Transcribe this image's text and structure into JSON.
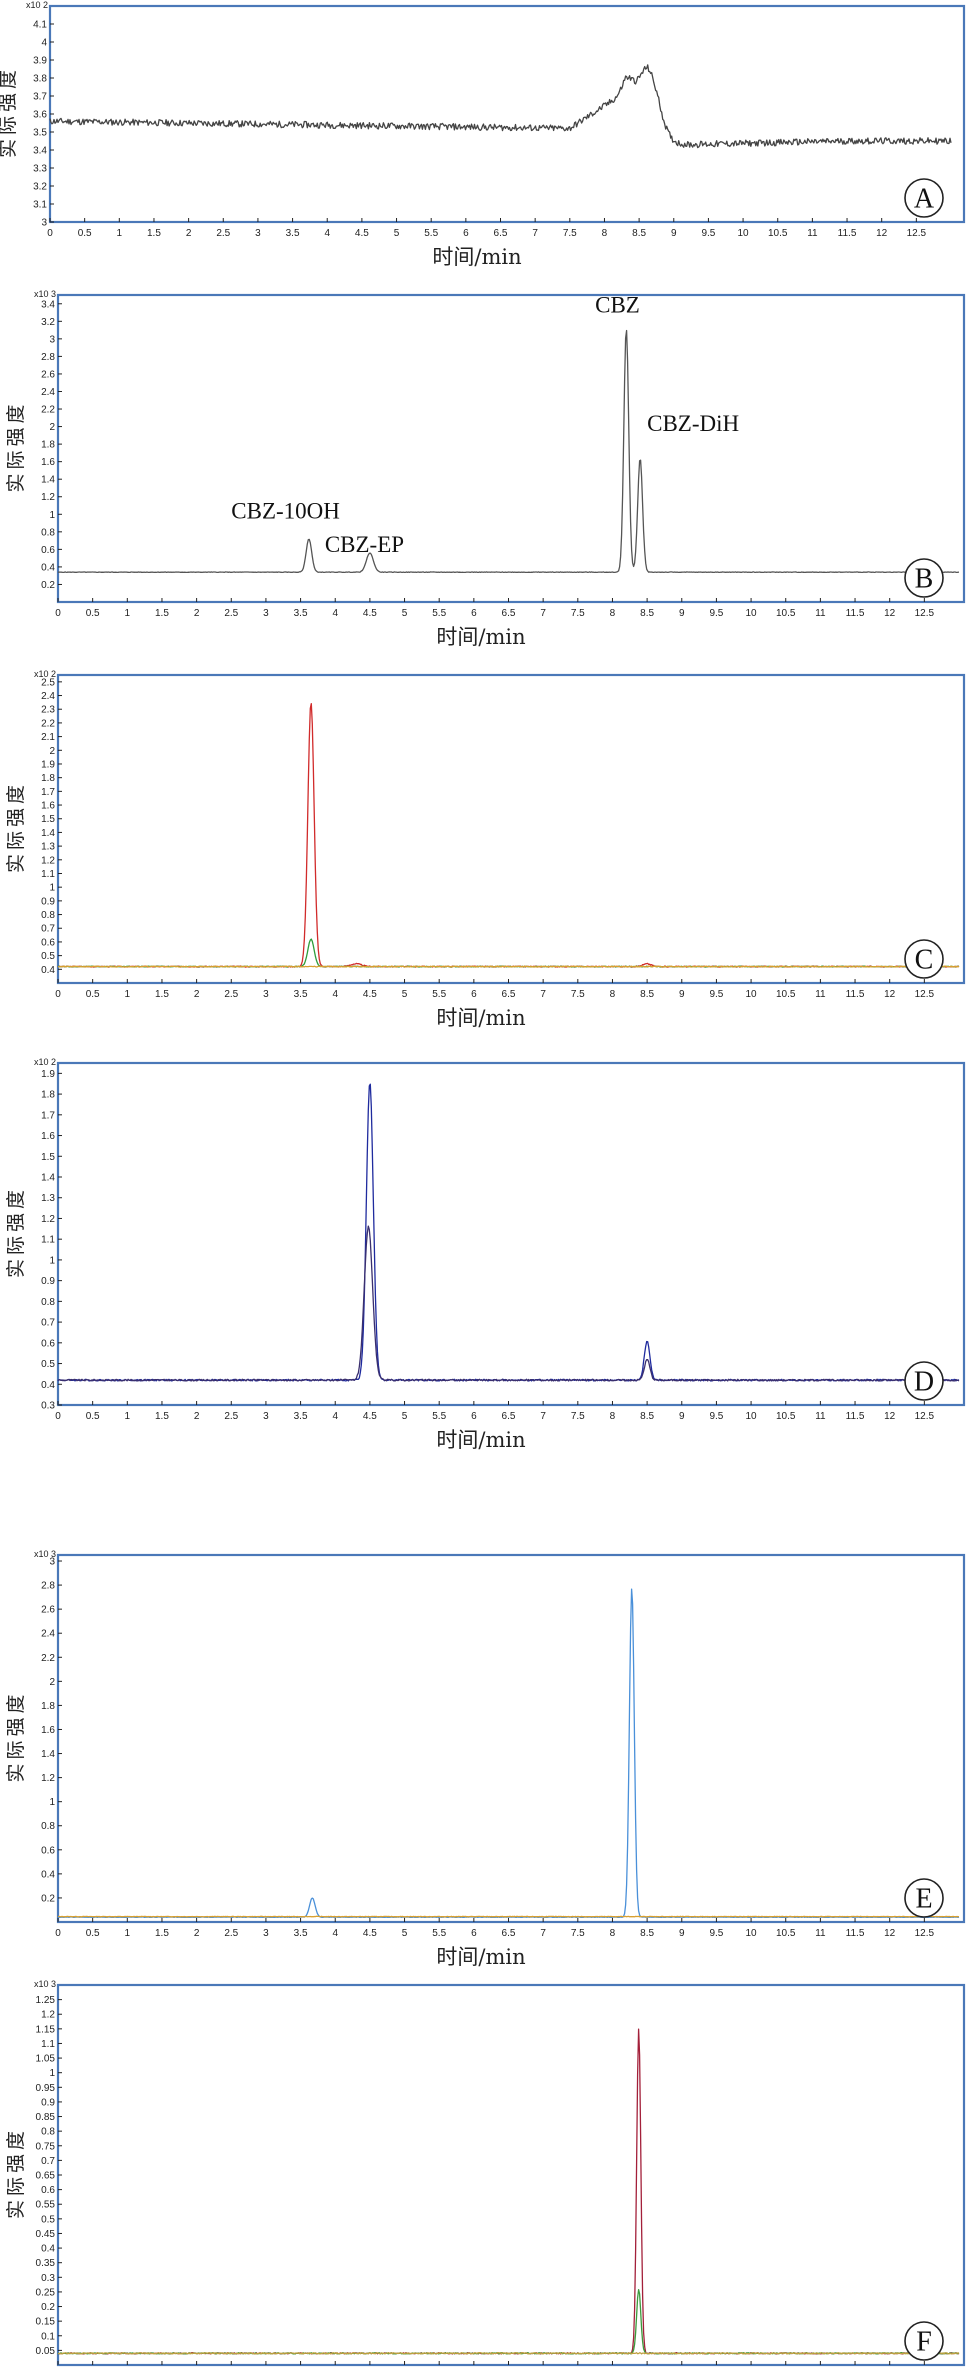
{
  "common": {
    "ylabel": "实际强度",
    "xlabel": "时间/min",
    "xlim": [
      0,
      13
    ],
    "xticks": [
      0,
      0.5,
      1,
      1.5,
      2,
      2.5,
      3,
      3.5,
      4,
      4.5,
      5,
      5.5,
      6,
      6.5,
      7,
      7.5,
      8,
      8.5,
      9,
      9.5,
      10,
      10.5,
      11,
      11.5,
      12,
      12.5
    ]
  },
  "chart_data": [
    {
      "type": "line",
      "panel_label": "A",
      "multiplier": "x10 2",
      "ylim": [
        3.0,
        4.2
      ],
      "yticks": [
        3,
        3.1,
        3.2,
        3.3,
        3.4,
        3.5,
        3.6,
        3.7,
        3.8,
        3.9,
        4,
        4.1
      ],
      "annotations": [],
      "series": [
        {
          "color": "#444444",
          "baseline": 3.54,
          "noise": 0.018,
          "seed": 11,
          "segments": [
            [
              0,
              3.56
            ],
            [
              7.5,
              3.52
            ],
            [
              7.9,
              3.62
            ],
            [
              8.3,
              3.72
            ],
            [
              8.7,
              3.45
            ],
            [
              9.2,
              3.43
            ],
            [
              11.5,
              3.45
            ],
            [
              13,
              3.45
            ]
          ],
          "peaks": [
            {
              "x": 8.65,
              "h": 0.36,
              "w": 0.14
            },
            {
              "x": 8.35,
              "h": 0.08,
              "w": 0.08
            }
          ]
        }
      ]
    },
    {
      "type": "line",
      "panel_label": "B",
      "multiplier": "x10 3",
      "ylim": [
        0,
        3.5
      ],
      "yticks": [
        0.2,
        0.4,
        0.6,
        0.8,
        1,
        1.2,
        1.4,
        1.6,
        1.8,
        2,
        2.2,
        2.4,
        2.6,
        2.8,
        3,
        3.2,
        3.4
      ],
      "annotations": [
        {
          "text": "CBZ-10OH",
          "x": 2.5,
          "y": 0.95
        },
        {
          "text": "CBZ-EP",
          "x": 3.85,
          "y": 0.57
        },
        {
          "text": "CBZ",
          "x": 7.75,
          "y": 3.3
        },
        {
          "text": "CBZ-DiH",
          "x": 8.5,
          "y": 1.95
        }
      ],
      "series": [
        {
          "color": "#555555",
          "baseline": 0.34,
          "noise": 0.003,
          "seed": 5,
          "segments": [],
          "peaks": [
            {
              "x": 3.62,
              "h": 0.38,
              "w": 0.04
            },
            {
              "x": 4.5,
              "h": 0.22,
              "w": 0.05
            },
            {
              "x": 8.2,
              "h": 2.78,
              "w": 0.035
            },
            {
              "x": 8.4,
              "h": 1.3,
              "w": 0.035
            }
          ]
        }
      ]
    },
    {
      "type": "line",
      "panel_label": "C",
      "multiplier": "x10 2",
      "ylim": [
        0.3,
        2.55
      ],
      "yticks": [
        0.4,
        0.5,
        0.6,
        0.7,
        0.8,
        0.9,
        1,
        1.1,
        1.2,
        1.3,
        1.4,
        1.5,
        1.6,
        1.7,
        1.8,
        1.9,
        2,
        2.1,
        2.2,
        2.3,
        2.4,
        2.5
      ],
      "annotations": [],
      "series": [
        {
          "color": "#d12b2b",
          "baseline": 0.42,
          "noise": 0.004,
          "seed": 3,
          "segments": [],
          "peaks": [
            {
              "x": 3.65,
              "h": 1.93,
              "w": 0.045
            },
            {
              "x": 4.3,
              "h": 0.02,
              "w": 0.08
            },
            {
              "x": 8.5,
              "h": 0.02,
              "w": 0.06
            }
          ]
        },
        {
          "color": "#2e9c3a",
          "baseline": 0.42,
          "noise": 0.003,
          "seed": 8,
          "segments": [],
          "peaks": [
            {
              "x": 3.65,
              "h": 0.2,
              "w": 0.045
            }
          ]
        },
        {
          "color": "#d8a030",
          "baseline": 0.42,
          "noise": 0.003,
          "seed": 21,
          "segments": [],
          "peaks": []
        }
      ]
    },
    {
      "type": "line",
      "panel_label": "D",
      "multiplier": "x10 2",
      "ylim": [
        0.3,
        1.95
      ],
      "yticks": [
        0.3,
        0.4,
        0.5,
        0.6,
        0.7,
        0.8,
        0.9,
        1,
        1.1,
        1.2,
        1.3,
        1.4,
        1.5,
        1.6,
        1.7,
        1.8,
        1.9
      ],
      "annotations": [],
      "series": [
        {
          "color": "#1f2b9e",
          "baseline": 0.42,
          "noise": 0.004,
          "seed": 4,
          "segments": [],
          "peaks": [
            {
              "x": 4.5,
              "h": 1.44,
              "w": 0.05
            },
            {
              "x": 8.5,
              "h": 0.19,
              "w": 0.04
            }
          ]
        },
        {
          "color": "#3a2f6e",
          "baseline": 0.42,
          "noise": 0.004,
          "seed": 9,
          "segments": [],
          "peaks": [
            {
              "x": 4.48,
              "h": 0.74,
              "w": 0.06
            },
            {
              "x": 8.5,
              "h": 0.1,
              "w": 0.04
            }
          ]
        }
      ]
    },
    {
      "type": "line",
      "panel_label": "E",
      "multiplier": "x10 3",
      "ylim": [
        0,
        3.05
      ],
      "yticks": [
        0.2,
        0.4,
        0.6,
        0.8,
        1,
        1.2,
        1.4,
        1.6,
        1.8,
        2,
        2.2,
        2.4,
        2.6,
        2.8,
        3
      ],
      "annotations": [],
      "series": [
        {
          "color": "#4a90d9",
          "baseline": 0.04,
          "noise": 0.002,
          "seed": 6,
          "segments": [],
          "peaks": [
            {
              "x": 3.67,
              "h": 0.16,
              "w": 0.04
            },
            {
              "x": 8.28,
              "h": 2.74,
              "w": 0.035
            }
          ]
        },
        {
          "color": "#d8a030",
          "baseline": 0.045,
          "noise": 0.002,
          "seed": 13,
          "segments": [],
          "peaks": []
        }
      ]
    },
    {
      "type": "line",
      "panel_label": "F",
      "multiplier": "x10 3",
      "ylim": [
        0,
        1.3
      ],
      "yticks": [
        0.05,
        0.1,
        0.15,
        0.2,
        0.25,
        0.3,
        0.35,
        0.4,
        0.45,
        0.5,
        0.55,
        0.6,
        0.65,
        0.7,
        0.75,
        0.8,
        0.85,
        0.9,
        0.95,
        1,
        1.05,
        1.1,
        1.15,
        1.2,
        1.25
      ],
      "annotations": [],
      "series": [
        {
          "color": "#a3203a",
          "baseline": 0.04,
          "noise": 0.002,
          "seed": 2,
          "segments": [],
          "peaks": [
            {
              "x": 8.38,
              "h": 1.11,
              "w": 0.03
            }
          ]
        },
        {
          "color": "#3c9a3c",
          "baseline": 0.04,
          "noise": 0.002,
          "seed": 17,
          "segments": [],
          "peaks": [
            {
              "x": 8.38,
              "h": 0.22,
              "w": 0.03
            }
          ]
        },
        {
          "color": "#c0a040",
          "baseline": 0.04,
          "noise": 0.002,
          "seed": 31,
          "segments": [],
          "peaks": []
        }
      ]
    }
  ]
}
